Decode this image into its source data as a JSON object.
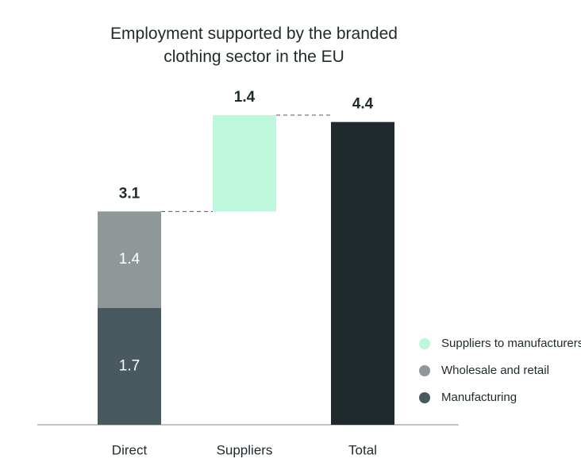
{
  "chart_data": {
    "type": "waterfall",
    "title": "Employment supported by the branded clothing sector in the EU",
    "categories": [
      "Direct",
      "Suppliers",
      "Total"
    ],
    "series": [
      {
        "name": "Manufacturing",
        "color": "#485a60",
        "values": [
          1.7,
          null,
          null
        ]
      },
      {
        "name": "Wholesale and retail",
        "color": "#8f9799",
        "values": [
          1.4,
          null,
          null
        ]
      },
      {
        "name": "Suppliers to manufacturers",
        "color": "#bdf7dc",
        "values": [
          null,
          1.4,
          null
        ]
      }
    ],
    "totals": {
      "color": "#1f2a2c",
      "values": [
        3.1,
        null,
        4.4
      ]
    }
  }
}
